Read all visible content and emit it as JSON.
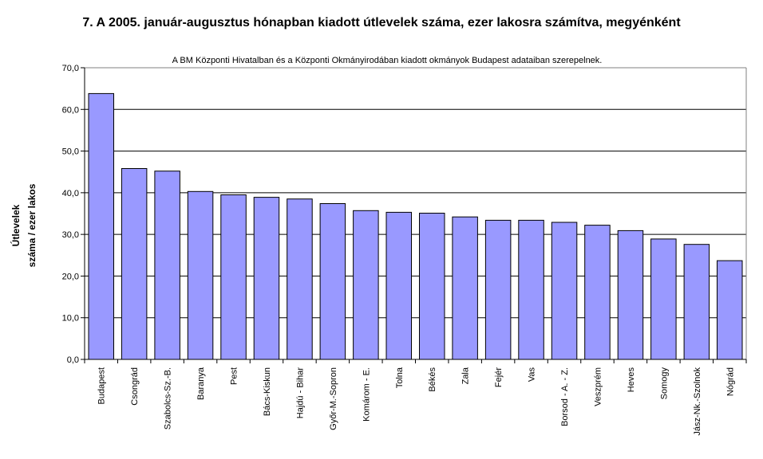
{
  "chart_data": {
    "type": "bar",
    "title": "7. A 2005. január-augusztus hónapban kiadott útlevelek száma, ezer lakosra számítva, megyénként",
    "note": "A BM Központi Hivatalban és a Központi Okmányirodában kiadott okmányok Budapest adataiban szerepelnek.",
    "ylabel_line1": "Útlevelek",
    "ylabel_line2": "száma / ezer lakos",
    "xlabel": "",
    "ylim": [
      0,
      70
    ],
    "yticks": [
      "0,0",
      "10,0",
      "20,0",
      "30,0",
      "40,0",
      "50,0",
      "60,0",
      "70,0"
    ],
    "grid": true,
    "legend": "none",
    "bar_color": "#9999ff",
    "bar_border_color": "#000000",
    "categories": [
      "Budapest",
      "Csongrád",
      "Szabolcs-Sz.-B.",
      "Baranya",
      "Pest",
      "Bács-Kiskun",
      "Hajdú - Bihar",
      "Győr-M.-Sopron",
      "Komárom - E.",
      "Tolna",
      "Békés",
      "Zala",
      "Fejér",
      "Vas",
      "Borsod - A. - Z.",
      "Veszprém",
      "Heves",
      "Somogy",
      "Jász-Nk.-Szolnok",
      "Nógrád"
    ],
    "values": [
      63.8,
      45.8,
      45.2,
      40.3,
      39.5,
      38.9,
      38.5,
      37.4,
      35.7,
      35.3,
      35.1,
      34.2,
      33.4,
      33.4,
      32.9,
      32.2,
      30.9,
      28.9,
      27.6,
      23.7
    ]
  }
}
